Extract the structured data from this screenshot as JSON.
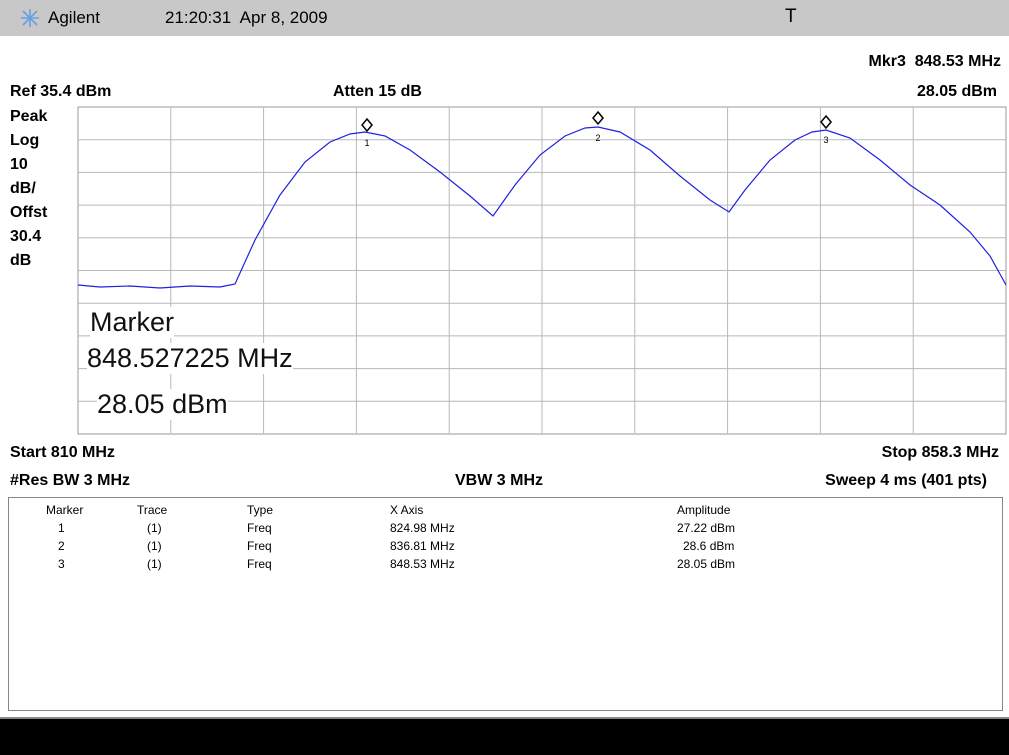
{
  "header": {
    "brand": "Agilent",
    "timestamp": "21:20:31  Apr 8, 2009",
    "indicator": "T"
  },
  "status": {
    "marker_freq": "Mkr3  848.53 MHz",
    "ref": "Ref 35.4 dBm",
    "atten": "Atten 15 dB",
    "marker_amp": "28.05 dBm"
  },
  "side_labels": [
    "Peak",
    "Log",
    "10",
    "dB/",
    "Offst",
    "30.4",
    "dB"
  ],
  "marker_box": {
    "title": "Marker",
    "freq": "848.527225 MHz",
    "amp": "28.05 dBm"
  },
  "marker_symbols": [
    "1",
    "2",
    "3"
  ],
  "footer": {
    "start": "Start 810 MHz",
    "stop": "Stop 858.3 MHz",
    "res_bw": "#Res BW 3 MHz",
    "vbw": "VBW 3 MHz",
    "sweep": "Sweep 4 ms (401 pts)"
  },
  "table": {
    "columns": [
      "Marker",
      "Trace",
      "Type",
      "X Axis",
      "Amplitude"
    ],
    "rows": [
      [
        "1",
        "(1)",
        "Freq",
        "824.98 MHz",
        "27.22 dBm"
      ],
      [
        "2",
        "(1)",
        "Freq",
        "836.81 MHz",
        "28.6 dBm"
      ],
      [
        "3",
        "(1)",
        "Freq",
        "848.53 MHz",
        "28.05 dBm"
      ]
    ]
  }
}
